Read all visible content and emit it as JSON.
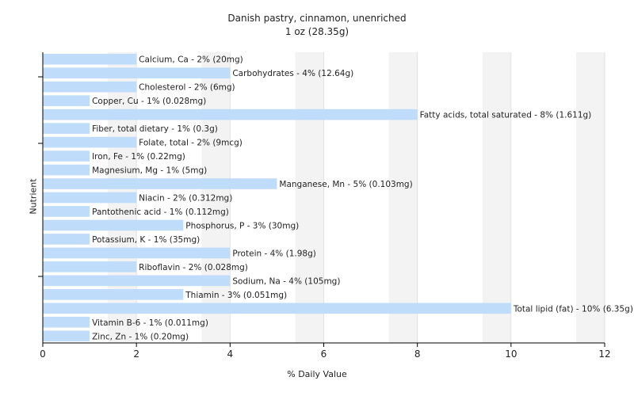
{
  "chart_data": {
    "type": "bar",
    "orientation": "horizontal",
    "title": "Danish pastry, cinnamon, unenriched",
    "subtitle": "1 oz (28.35g)",
    "xlabel": "% Daily Value",
    "ylabel": "Nutrient",
    "xlim": [
      0,
      12
    ],
    "xticks": [
      0,
      2,
      4,
      6,
      8,
      10,
      12
    ],
    "grid": true,
    "bar_color": "#bfdcfb",
    "categories": [
      "Calcium, Ca - 2% (20mg)",
      "Carbohydrates - 4% (12.64g)",
      "Cholesterol - 2% (6mg)",
      "Copper, Cu - 1% (0.028mg)",
      "Fatty acids, total saturated - 8% (1.611g)",
      "Fiber, total dietary - 1% (0.3g)",
      "Folate, total - 2% (9mcg)",
      "Iron, Fe - 1% (0.22mg)",
      "Magnesium, Mg - 1% (5mg)",
      "Manganese, Mn - 5% (0.103mg)",
      "Niacin - 2% (0.312mg)",
      "Pantothenic acid - 1% (0.112mg)",
      "Phosphorus, P - 3% (30mg)",
      "Potassium, K - 1% (35mg)",
      "Protein - 4% (1.98g)",
      "Riboflavin - 2% (0.028mg)",
      "Sodium, Na - 4% (105mg)",
      "Thiamin - 3% (0.051mg)",
      "Total lipid (fat) - 10% (6.35g)",
      "Vitamin B-6 - 1% (0.011mg)",
      "Zinc, Zn - 1% (0.20mg)"
    ],
    "values": [
      2,
      4,
      2,
      1,
      8,
      1,
      2,
      1,
      1,
      5,
      2,
      1,
      3,
      1,
      4,
      2,
      4,
      3,
      10,
      1,
      1
    ]
  }
}
